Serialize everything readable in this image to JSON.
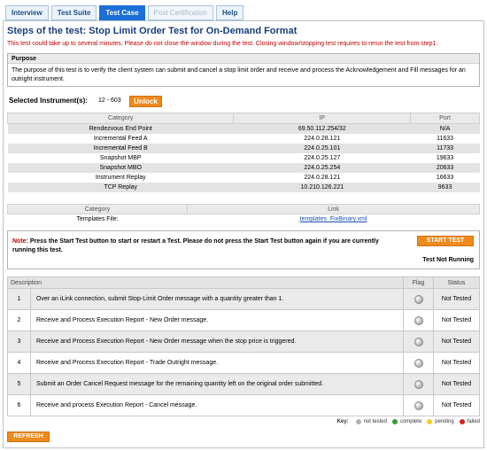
{
  "tabs": [
    {
      "label": "Interview",
      "state": "normal"
    },
    {
      "label": "Test Suite",
      "state": "normal"
    },
    {
      "label": "Test Case",
      "state": "active"
    },
    {
      "label": "Post Certification",
      "state": "disabled"
    },
    {
      "label": "Help",
      "state": "normal"
    }
  ],
  "title": "Steps of the test:  Stop Limit Order Test for On-Demand Format",
  "warning": "This test could take up to several minutes. Please do not close the window during the test. Closing window/stopping test requires to rerun the test from step1.",
  "purpose": {
    "heading": "Purpose",
    "text": "The purpose of this test is to verify the client system can submit and cancel a stop limit order and receive and process the Acknowledgement and Fill messages for an outright instrument."
  },
  "instrument": {
    "label": "Selected Instrument(s):",
    "value": "12 - 603",
    "unlock_label": "Unlock"
  },
  "ip_table": {
    "headers": {
      "category": "Category",
      "ip": "IP",
      "port": "Port"
    },
    "rows": [
      {
        "category": "Rendezvous End Point",
        "ip": "69.50.112.254/32",
        "port": "N/A"
      },
      {
        "category": "Incremental Feed A",
        "ip": "224.0.28.121",
        "port": "11633"
      },
      {
        "category": "Incremental Feed B",
        "ip": "224.0.25.101",
        "port": "11733"
      },
      {
        "category": "Snapshot MBP",
        "ip": "224.0.25.127",
        "port": "19633"
      },
      {
        "category": "Snapshot MBO",
        "ip": "224.0.25.254",
        "port": "20633"
      },
      {
        "category": "Instrument Replay",
        "ip": "224.0.28.121",
        "port": "16633"
      },
      {
        "category": "TCP Replay",
        "ip": "10.210.126.221",
        "port": "9633"
      }
    ]
  },
  "link_table": {
    "headers": {
      "category": "Category",
      "link": "Link"
    },
    "rows": [
      {
        "category": "Templates File:",
        "link": "templates_FixBinary.xml"
      }
    ]
  },
  "note": {
    "label": "Note:",
    "text": " Press the Start Test button to start or restart a Test. Please do not press the Start Test button again if you are currently running this test.",
    "start_label": "START TEST",
    "status": "Test Not Running"
  },
  "steps": {
    "headers": {
      "description": "Description",
      "flag": "Flag",
      "status": "Status"
    },
    "rows": [
      {
        "num": "1",
        "description": "Over an iLink connection, submit Stop-Limit Order message with a quantity greater than 1.",
        "status": "Not Tested"
      },
      {
        "num": "2",
        "description": "Receive and Process Execution Report - New Order message.",
        "status": "Not Tested"
      },
      {
        "num": "3",
        "description": "Receive and Process Execution Report - New Order message when the stop price is triggered.",
        "status": "Not Tested"
      },
      {
        "num": "4",
        "description": "Receive and Process Execution Report - Trade Outright message.",
        "status": "Not Tested"
      },
      {
        "num": "5",
        "description": "Submit an Order Cancel Request message for the remaining quantity left on the original order submitted.",
        "status": "Not Tested"
      },
      {
        "num": "6",
        "description": "Receive and process Execution Report - Cancel message.",
        "status": "Not Tested"
      }
    ]
  },
  "key": {
    "label": "Key:",
    "items": [
      {
        "label": "not tested",
        "color": "#b0b0b0"
      },
      {
        "label": "complete",
        "color": "#2ea02e"
      },
      {
        "label": "pending",
        "color": "#f2d21c"
      },
      {
        "label": "failed",
        "color": "#e01e1e"
      }
    ]
  },
  "refresh_label": "REFRESH"
}
